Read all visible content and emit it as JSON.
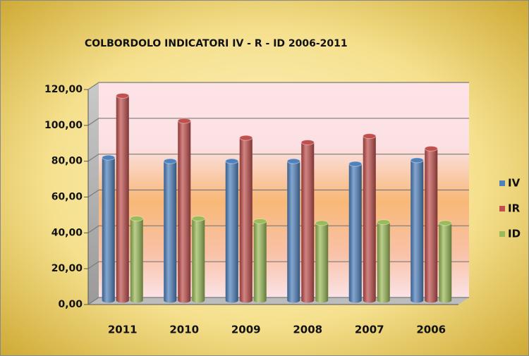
{
  "chart_data": {
    "type": "bar",
    "title": "COLBORDOLO INDICATORI  IV  - R  - ID  2006-2011",
    "categories": [
      "2011",
      "2010",
      "2009",
      "2008",
      "2007",
      "2006"
    ],
    "series": [
      {
        "name": "IV",
        "color": "#4f81bd",
        "values": [
          82,
          80,
          80,
          80,
          78.5,
          80.5
        ]
      },
      {
        "name": "IR",
        "color": "#c0504d",
        "values": [
          116.5,
          102.5,
          93,
          90.5,
          94,
          87
        ]
      },
      {
        "name": "ID",
        "color": "#9bbb59",
        "values": [
          48,
          48,
          46.5,
          45.5,
          46,
          45.5
        ]
      }
    ],
    "ylim": [
      0,
      120
    ],
    "yticks": [
      {
        "value": 0,
        "label": "0,00"
      },
      {
        "value": 20,
        "label": "20,00"
      },
      {
        "value": 40,
        "label": "40,00"
      },
      {
        "value": 60,
        "label": "60,00"
      },
      {
        "value": 80,
        "label": "80,00"
      },
      {
        "value": 100,
        "label": "100,00"
      },
      {
        "value": 120,
        "label": "120,00"
      }
    ],
    "grid": true,
    "legend": "right"
  }
}
